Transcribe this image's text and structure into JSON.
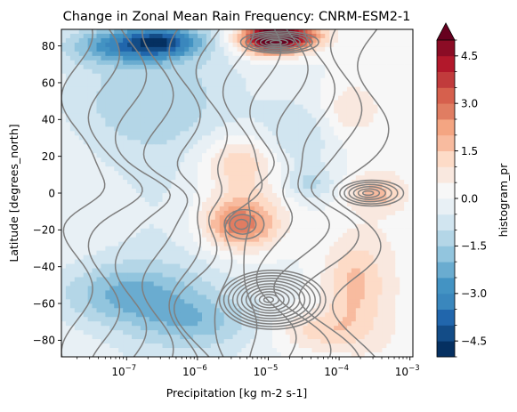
{
  "chart_data": {
    "type": "heatmap",
    "title": "Change in Zonal Mean Rain Frequency: CNRM-ESM2-1",
    "xlabel": "Precipitation [kg m-2 s-1]",
    "ylabel": "Latitude [degrees_north]",
    "x_scale": "log",
    "x_ticks": [
      {
        "value": 1e-07,
        "base": "10",
        "exp": "−7"
      },
      {
        "value": 1e-06,
        "base": "10",
        "exp": "−6"
      },
      {
        "value": 1e-05,
        "base": "10",
        "exp": "−5"
      },
      {
        "value": 0.0001,
        "base": "10",
        "exp": "−4"
      },
      {
        "value": 0.001,
        "base": "10",
        "exp": "−3"
      }
    ],
    "xlim": [
      1.2e-08,
      0.0011
    ],
    "ylim": [
      -89,
      89
    ],
    "y_ticks": [
      "80",
      "60",
      "40",
      "20",
      "0",
      "−20",
      "−40",
      "−60",
      "−80"
    ],
    "y_tick_values": [
      80,
      60,
      40,
      20,
      0,
      -20,
      -40,
      -60,
      -80
    ],
    "colorbar": {
      "label": "histogram_pr",
      "vmin": -5.0,
      "vmax": 5.0,
      "levels": 20,
      "extend": "max",
      "ticks": [
        "4.5",
        "3.0",
        "1.5",
        "0.0",
        "−1.5",
        "−3.0",
        "−4.5"
      ],
      "tick_values": [
        4.5,
        3.0,
        1.5,
        0.0,
        -1.5,
        -3.0,
        -4.5
      ],
      "cmap": [
        "#053061",
        "#134c87",
        "#2166ac",
        "#3a87bd",
        "#4393c3",
        "#6aacd0",
        "#92c5de",
        "#b4d6e7",
        "#d1e5f0",
        "#e8f0f5",
        "#f7f7f7",
        "#f9e8df",
        "#fddbc7",
        "#f8bb9f",
        "#f4a582",
        "#e07d62",
        "#d6604d",
        "#c13b3c",
        "#b2182b",
        "#8b0c25"
      ],
      "extend_color": "#67001f"
    },
    "fill_anomalies": [
      {
        "x_log10": -5.0,
        "lat": 84,
        "amp": 5.5,
        "sx": 0.3,
        "sy": 6
      },
      {
        "x_log10": -4.6,
        "lat": 85,
        "amp": 3.0,
        "sx": 0.3,
        "sy": 5
      },
      {
        "x_log10": -6.5,
        "lat": 82,
        "amp": -3.2,
        "sx": 0.4,
        "sy": 6
      },
      {
        "x_log10": -7.2,
        "lat": 80,
        "amp": -2.0,
        "sx": 0.5,
        "sy": 7
      },
      {
        "x_log10": -5.4,
        "lat": -18,
        "amp": 2.2,
        "sx": 0.35,
        "sy": 9
      },
      {
        "x_log10": -5.4,
        "lat": 18,
        "amp": 1.6,
        "sx": 0.4,
        "sy": 10
      },
      {
        "x_log10": -5.4,
        "lat": -10,
        "amp": 1.3,
        "sx": 0.45,
        "sy": 14
      },
      {
        "x_log10": -3.5,
        "lat": 0,
        "amp": 1.6,
        "sx": 0.25,
        "sy": 6
      },
      {
        "x_log10": -3.8,
        "lat": -50,
        "amp": 1.5,
        "sx": 0.3,
        "sy": 18
      },
      {
        "x_log10": -4.3,
        "lat": -75,
        "amp": 1.2,
        "sx": 0.45,
        "sy": 8
      },
      {
        "x_log10": -7.0,
        "lat": -55,
        "amp": -1.8,
        "sx": 0.7,
        "sy": 12
      },
      {
        "x_log10": -6.0,
        "lat": -70,
        "amp": -1.2,
        "sx": 0.6,
        "sy": 10
      },
      {
        "x_log10": -6.8,
        "lat": 50,
        "amp": -1.0,
        "sx": 0.8,
        "sy": 20
      },
      {
        "x_log10": -4.6,
        "lat": 30,
        "amp": -0.9,
        "sx": 0.4,
        "sy": 15
      },
      {
        "x_log10": -4.4,
        "lat": 5,
        "amp": -1.0,
        "sx": 0.25,
        "sy": 6
      },
      {
        "x_log10": -3.9,
        "lat": 45,
        "amp": 0.8,
        "sx": 0.25,
        "sy": 10
      }
    ],
    "contour_centers": [
      {
        "x_log10": -5.0,
        "lat": -58,
        "levels": 11,
        "rx": 0.75,
        "ry": 16
      },
      {
        "x_log10": -4.9,
        "lat": 82,
        "levels": 7,
        "rx": 0.55,
        "ry": 6
      },
      {
        "x_log10": -3.6,
        "lat": 0,
        "levels": 6,
        "rx": 0.45,
        "ry": 7
      },
      {
        "x_log10": -5.4,
        "lat": -17,
        "levels": 3,
        "rx": 0.28,
        "ry": 8
      }
    ]
  }
}
